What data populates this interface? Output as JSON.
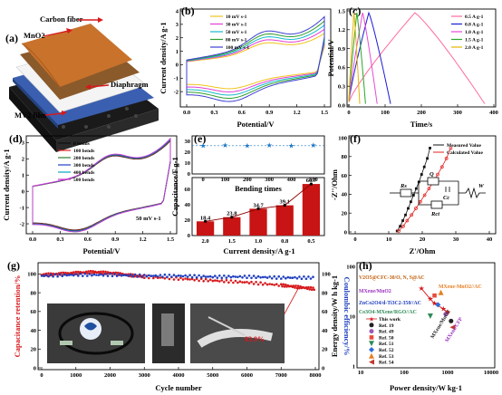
{
  "colors": {
    "red": "#d7191c",
    "blue": "#1f3fbf",
    "darkred": "#b01010",
    "star": "#1f77c4"
  },
  "panel_a": {
    "label": "(a)",
    "layers": [
      "Carbon fiber",
      "MnO2",
      "Diaphragm",
      "MV2 film"
    ]
  },
  "panel_g_photos": {
    "note": "device photos (logo, bent strip, electrode)"
  },
  "chart_data": [
    {
      "panel": "(b)",
      "type": "line",
      "subtype": "cyclic-voltammetry",
      "xlabel": "Potential/V",
      "ylabel": "Current density/A g-1",
      "xlim": [
        0,
        1.5
      ],
      "ylim": [
        -3,
        4
      ],
      "xticks": [
        "0.0",
        "0.3",
        "0.6",
        "0.9",
        "1.2",
        "1.5"
      ],
      "yticks": [
        "-2",
        "-1",
        "0",
        "1",
        "2",
        "3",
        "4"
      ],
      "series": [
        {
          "name": "10 mV s-1",
          "color": "#f0c419",
          "scale": 0.75
        },
        {
          "name": "30 mV s-1",
          "color": "#e23fd4",
          "scale": 0.85
        },
        {
          "name": "50 mV s-1",
          "color": "#16b9c9",
          "scale": 0.95
        },
        {
          "name": "80 mV s-1",
          "color": "#2e9e2e",
          "scale": 1.05
        },
        {
          "name": "100 mV s-1",
          "color": "#3f3fd1",
          "scale": 1.15
        }
      ]
    },
    {
      "panel": "(c)",
      "type": "line",
      "subtype": "galvanostatic-charge-discharge",
      "xlabel": "Time/s",
      "ylabel": "Potential/V",
      "xlim": [
        0,
        400
      ],
      "ylim": [
        0,
        1.5
      ],
      "xticks": [
        "0",
        "100",
        "200",
        "300",
        "400"
      ],
      "yticks": [
        "0.0",
        "0.3",
        "0.6",
        "0.9",
        "1.2",
        "1.5"
      ],
      "series": [
        {
          "name": "0.5 A g-1",
          "color": "#ff6b9a",
          "tc": 182,
          "td": 375
        },
        {
          "name": "0.8 A g-1",
          "color": "#1b1bd6",
          "tc": 55,
          "td": 115
        },
        {
          "name": "1.0 A g-1",
          "color": "#e84ad4",
          "tc": 38,
          "td": 78
        },
        {
          "name": "1.5 A g-1",
          "color": "#2aa52a",
          "tc": 22,
          "td": 46
        },
        {
          "name": "2.0 A g-1",
          "color": "#e6b400",
          "tc": 14,
          "td": 30
        }
      ]
    },
    {
      "panel": "(d)",
      "type": "line",
      "subtype": "cyclic-voltammetry-bending",
      "xlabel": "Potential/V",
      "ylabel": "Current density/A g-1",
      "annotation": "50 mV s-1",
      "xlim": [
        0,
        1.5
      ],
      "ylim": [
        -2.5,
        3.3
      ],
      "xticks": [
        "0.0",
        "0.3",
        "0.6",
        "0.9",
        "1.2",
        "1.5"
      ],
      "yticks": [
        "-2",
        "-1",
        "0",
        "1",
        "2",
        "3"
      ],
      "series": [
        {
          "name": "0 bends",
          "color": "#111111"
        },
        {
          "name": "100 bends",
          "color": "#e02020"
        },
        {
          "name": "200 bends",
          "color": "#2e7d32"
        },
        {
          "name": "300 bends",
          "color": "#1e3fcf"
        },
        {
          "name": "400 bends",
          "color": "#0aa4c0"
        },
        {
          "name": "500 bends",
          "color": "#cc33cc"
        }
      ]
    },
    {
      "panel": "(e)",
      "type": "bar",
      "top": {
        "xlabel": "Bending times",
        "x": [
          0,
          100,
          200,
          300,
          400,
          500
        ],
        "y": [
          26.0,
          26.3,
          26.0,
          26.4,
          25.8,
          26.1
        ],
        "ylim": [
          0,
          35
        ],
        "xticks": [
          "0",
          "100",
          "200",
          "300",
          "400",
          "500"
        ],
        "yticks": [
          "0",
          "10",
          "20",
          "30"
        ]
      },
      "bottom": {
        "xlabel": "Current density/A g-1",
        "categories": [
          "2.0",
          "1.5",
          "1.0",
          "0.8",
          "0.5"
        ],
        "values": [
          18.4,
          23.8,
          34.7,
          39.1,
          66.7
        ],
        "labels": [
          "18.4",
          "23.8",
          "34.7",
          "39.1",
          "66.7"
        ],
        "ylim": [
          0,
          75
        ],
        "yticks": [
          "0",
          "20",
          "40",
          "60"
        ]
      },
      "ylabel": "Capacitance/F g-1"
    },
    {
      "panel": "(f)",
      "type": "scatter",
      "subtype": "nyquist",
      "xlabel": "Z'/Ohm",
      "ylabel": "-Z''/Ohm",
      "xlim": [
        0,
        40
      ],
      "ylim": [
        0,
        100
      ],
      "xticks": [
        "0",
        "10",
        "20",
        "30",
        "40"
      ],
      "yticks": [
        "0",
        "20",
        "40",
        "60",
        "80",
        "100"
      ],
      "series": [
        {
          "name": "Measured Value",
          "color": "#111111",
          "x": [
            12.5,
            13.4,
            14.2,
            15.0,
            15.8,
            16.6,
            17.4,
            18.2,
            19.0,
            19.8,
            20.6,
            21.5,
            22.3
          ],
          "y": [
            1,
            6,
            12,
            18,
            25,
            32,
            39,
            46,
            53,
            61,
            69,
            78,
            89
          ]
        },
        {
          "name": "Calculated Value",
          "color": "#e02020",
          "x": [
            13.0,
            14.3,
            15.5,
            16.8,
            18.1,
            19.4,
            20.7,
            22.0,
            23.3,
            24.6,
            25.9,
            27.2,
            28.5
          ],
          "y": [
            1,
            6,
            12,
            18,
            25,
            32,
            39,
            46,
            53,
            61,
            69,
            78,
            89
          ]
        }
      ],
      "circuit": [
        "Rs",
        "Q",
        "Cc",
        "Rct",
        "W"
      ]
    },
    {
      "panel": "(g)",
      "type": "line",
      "subtype": "cycling",
      "xlabel": "Cycle number",
      "ylabel": "Capacitance retention/%",
      "y2label": "Coulombic efficiency/%",
      "xlim": [
        0,
        8000
      ],
      "ylim": [
        0,
        110
      ],
      "y2lim": [
        0,
        110
      ],
      "xticks": [
        "0",
        "1000",
        "2000",
        "3000",
        "4000",
        "5000",
        "6000",
        "7000",
        "8000"
      ],
      "yticks": [
        "0",
        "20",
        "40",
        "60",
        "80",
        "100"
      ],
      "annotation": "83.9%",
      "series": [
        {
          "name": "Capacitance retention",
          "color": "#d7191c",
          "x": [
            0,
            500,
            1000,
            1500,
            2000,
            2500,
            3000,
            4000,
            5000,
            6000,
            7000,
            7500,
            8000
          ],
          "y": [
            99,
            100,
            101,
            102,
            101,
            99,
            97,
            95,
            93,
            91,
            88,
            86,
            84
          ]
        },
        {
          "name": "Coulombic efficiency",
          "color": "#1f3fbf",
          "x": [
            0,
            1000,
            2000,
            3000,
            4000,
            5000,
            6000,
            7000,
            8000
          ],
          "y": [
            98,
            99,
            99,
            98,
            98,
            97,
            97,
            96,
            96
          ]
        }
      ]
    },
    {
      "panel": "(h)",
      "type": "scatter",
      "subtype": "ragone-loglog",
      "xlabel": "Power density/W kg-1",
      "ylabel": "Energy density/W h kg-1",
      "xlim": [
        10,
        10000
      ],
      "ylim": [
        1,
        100
      ],
      "xticks": [
        "10",
        "100",
        "1000",
        "10000"
      ],
      "yticks": [
        "1",
        "10",
        "100"
      ],
      "annotations": [
        "V2O5@CFC-30/O, N, S@AC",
        "MXene/MnO2",
        "ZnCo2O4/d-Ti3C2-350//AC",
        "Co3O4-MXene/RGO//AC",
        "MXene-MnO2//AC",
        "MXene/MnO2",
        "MXene/CFP"
      ],
      "series": [
        {
          "name": "This work",
          "color": "#d7191c",
          "marker": "star",
          "x": [
            250,
            400,
            500,
            800,
            1000
          ],
          "y": [
            36,
            22,
            18,
            14,
            12
          ]
        },
        {
          "name": "Ref. 19",
          "color": "#222222",
          "marker": "circle",
          "x": [
            1200
          ],
          "y": [
            8
          ]
        },
        {
          "name": "Ref. 49",
          "color": "#9b59b6",
          "marker": "circle",
          "x": [
            900
          ],
          "y": [
            11
          ]
        },
        {
          "name": "Ref. 50",
          "color": "#e74c3c",
          "marker": "square",
          "x": [
            500
          ],
          "y": [
            26
          ]
        },
        {
          "name": "Ref. 51",
          "color": "#2e8b57",
          "marker": "triangle-down",
          "x": [
            400
          ],
          "y": [
            10
          ]
        },
        {
          "name": "Ref. 52",
          "color": "#2e6bd8",
          "marker": "diamond",
          "x": [
            600
          ],
          "y": [
            17
          ]
        },
        {
          "name": "Ref. 53",
          "color": "#e67e22",
          "marker": "triangle-up",
          "x": [
            700
          ],
          "y": [
            30
          ]
        },
        {
          "name": "Ref. 54",
          "color": "#c0392b",
          "marker": "triangle-left",
          "x": [
            1300
          ],
          "y": [
            6
          ]
        }
      ]
    }
  ]
}
